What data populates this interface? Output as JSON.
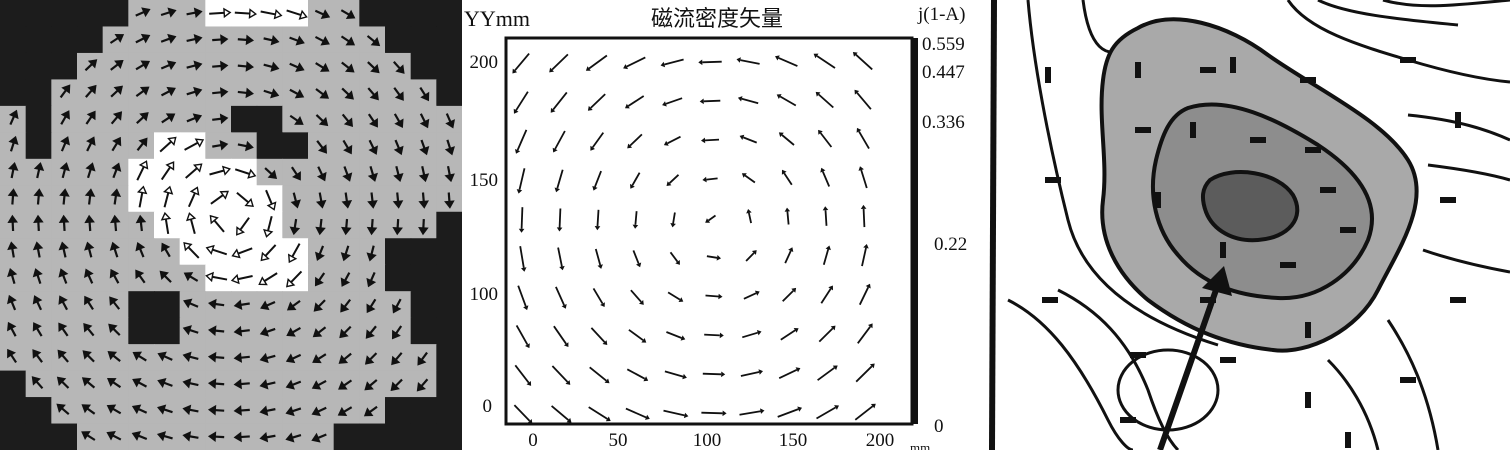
{
  "middle": {
    "title": "磁流密度矢量",
    "y_unit_label": "YYmm",
    "y_ticks": [
      "200",
      "150",
      "100",
      "0"
    ],
    "x_ticks": [
      "0",
      "50",
      "100",
      "150",
      "200"
    ],
    "x_unit_label": "mm",
    "colorbar_title": "j(1-A)",
    "colorbar_ticks": [
      "0.559",
      "0.447",
      "0.336",
      "0.22",
      "0"
    ]
  },
  "colors": {
    "dark_region": "#1c1c1c",
    "mid_region": "#b7b7b7",
    "light_region": "#ffffff",
    "contour_outer_fill": "#a9a9a9",
    "contour_inner_fill": "#8d8d8d",
    "contour_core_fill": "#5c5c5c"
  }
}
